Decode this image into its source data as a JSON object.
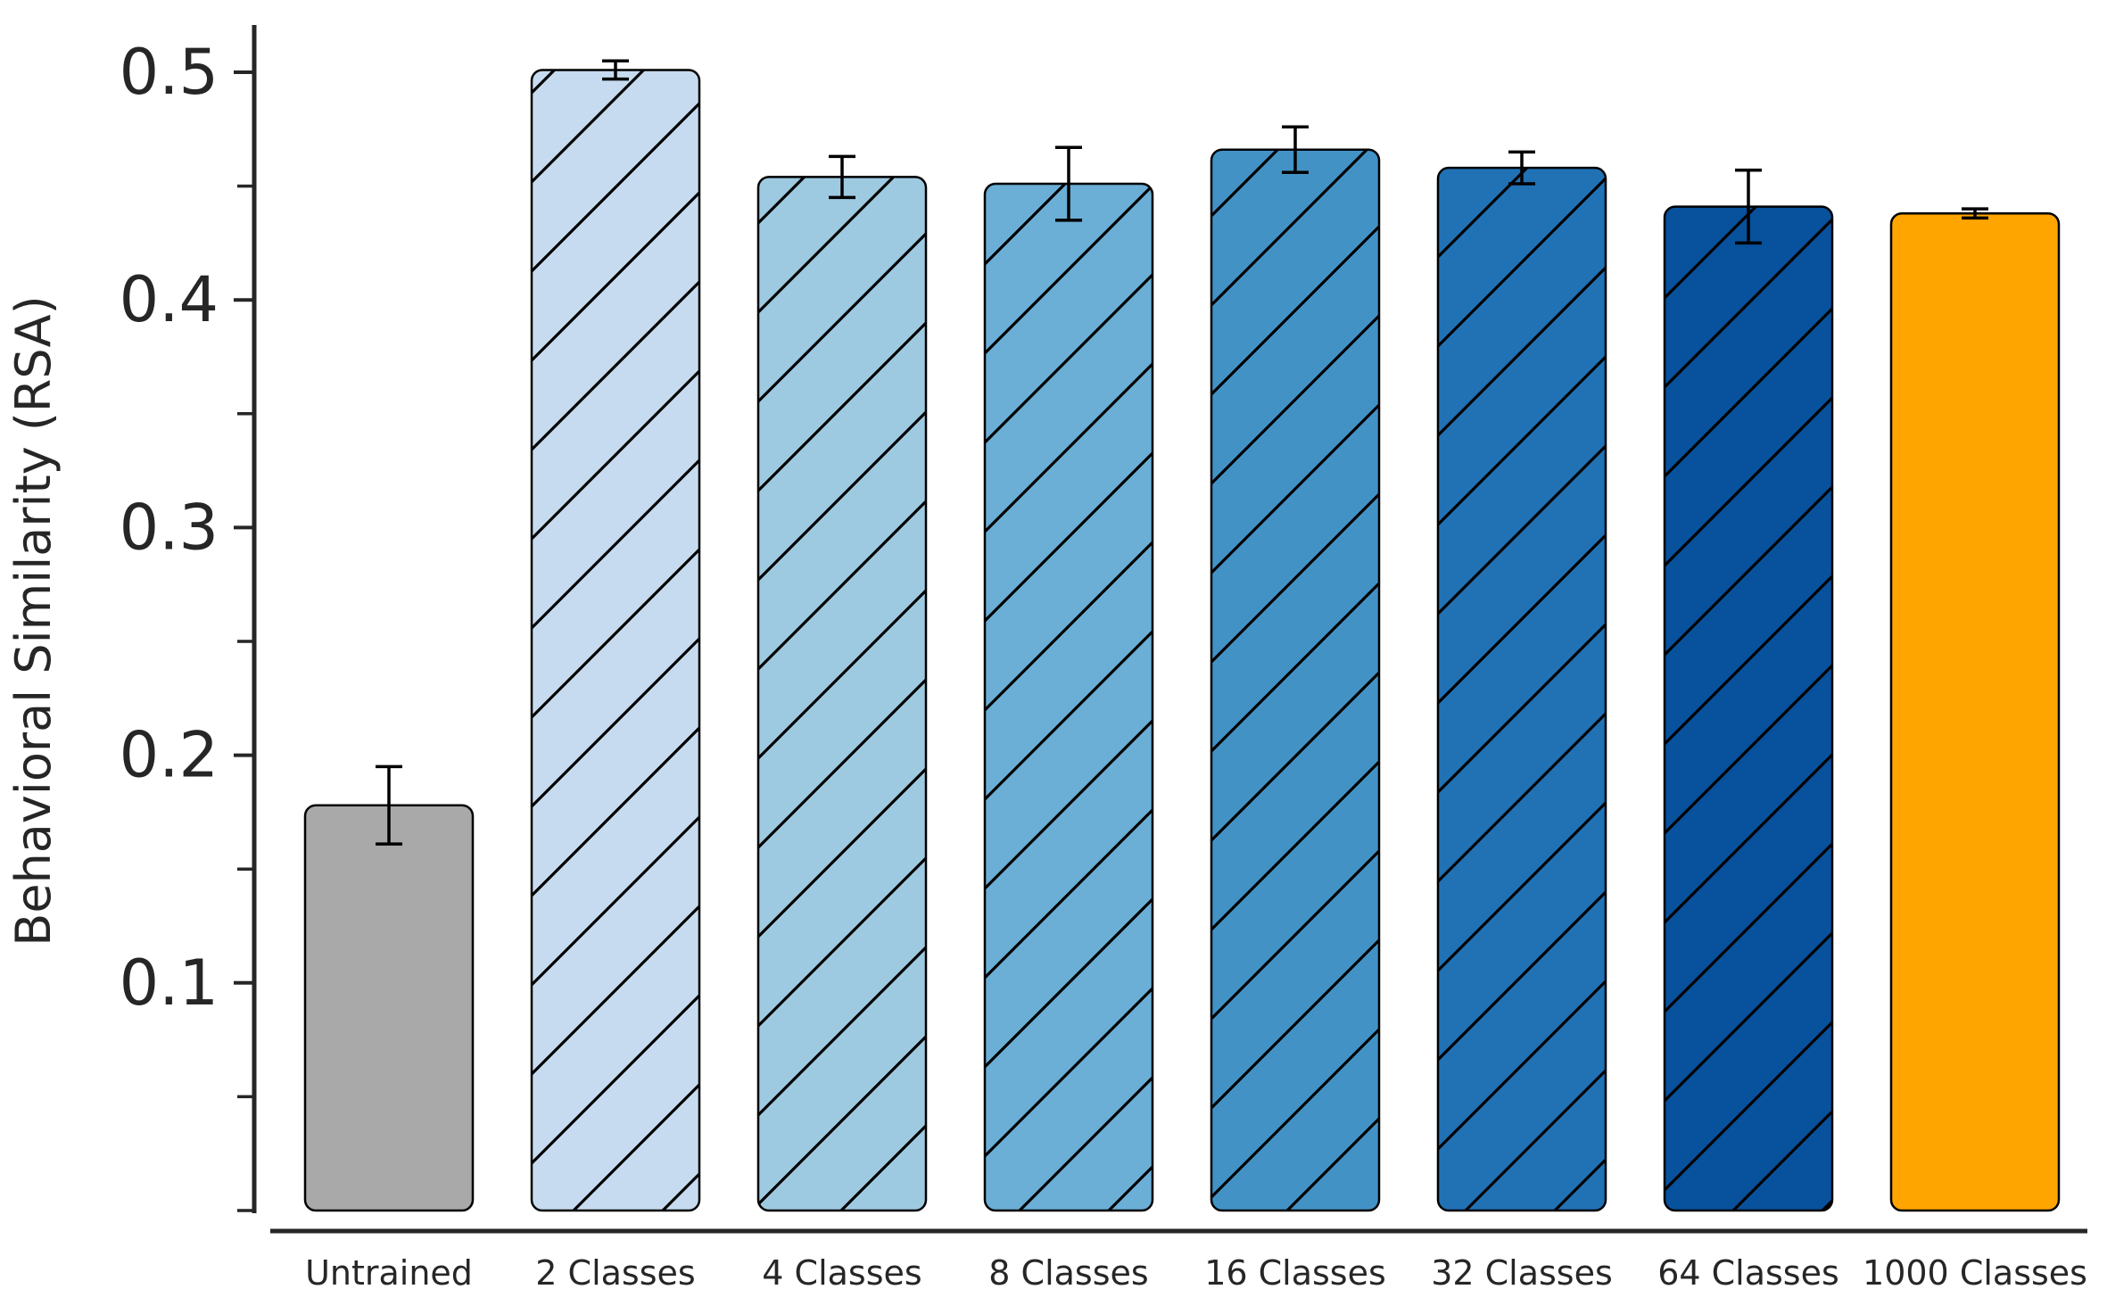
{
  "chart_data": {
    "type": "bar",
    "title": "",
    "xlabel": "",
    "ylabel": "Behavioral Similarity (RSA)",
    "ylim": [
      0,
      0.52
    ],
    "yticks": [
      "0.1",
      "0.2",
      "0.3",
      "0.4",
      "0.5"
    ],
    "grid": false,
    "categories": [
      "Untrained",
      "2 Classes",
      "4 Classes",
      "8 Classes",
      "16 Classes",
      "32 Classes",
      "64 Classes",
      "1000 Classes"
    ],
    "values": [
      0.178,
      0.501,
      0.454,
      0.451,
      0.466,
      0.458,
      0.441,
      0.438
    ],
    "errors": [
      0.017,
      0.004,
      0.009,
      0.016,
      0.01,
      0.007,
      0.016,
      0.002
    ],
    "colors": [
      "#a9a9a9",
      "#c6dbef",
      "#9ecae1",
      "#6baed6",
      "#4292c6",
      "#2171b5",
      "#08519c",
      "#ffa500"
    ],
    "hatched": [
      false,
      true,
      true,
      true,
      true,
      true,
      true,
      false
    ]
  }
}
